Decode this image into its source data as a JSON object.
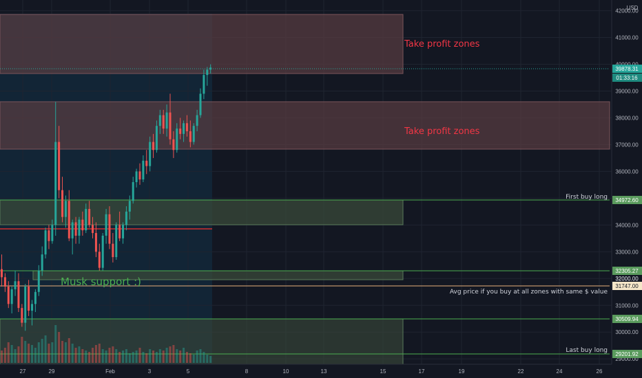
{
  "currency": "USD",
  "colors": {
    "background": "#131722",
    "grid": "#1f2430",
    "up": "#26a69a",
    "down": "#ef5350",
    "zone_red_fill": "#4a3438",
    "zone_red_line": "#6b4a4f",
    "zone_green_fill": "#2c3f33",
    "zone_green_line": "#3d9a52",
    "avg_line": "#e8b07a",
    "mid_red_line": "#d32f2f",
    "highlight": "#13283a",
    "price_tag": "#26a69a",
    "tag_green": "#5a9b5d",
    "annotation_red": "#f23645",
    "annotation_green": "#4caf50",
    "axis_text": "#b2b5be"
  },
  "price_axis": {
    "ticks": [
      "42000.00",
      "41000.00",
      "40000.00",
      "39000.00",
      "38000.00",
      "37000.00",
      "36000.00",
      "35000.00",
      "34000.00",
      "33000.00",
      "32000.00",
      "31000.00",
      "30000.00",
      "29000.00"
    ],
    "current_price": "39878.31",
    "countdown": "01:33:16"
  },
  "time_axis": {
    "ticks": [
      "27",
      "29",
      "Feb",
      "3",
      "5",
      "8",
      "10",
      "13",
      "15",
      "17",
      "19",
      "22",
      "24",
      "26"
    ]
  },
  "zones": [
    {
      "label": "Take profit zones",
      "color": "red"
    },
    {
      "label": "Take profit zones",
      "color": "red"
    },
    {
      "label": "",
      "color": "green"
    },
    {
      "label": "",
      "color": "green"
    },
    {
      "label": "",
      "color": "green"
    }
  ],
  "levels": [
    {
      "label": "First buy long",
      "value": "34972.60"
    },
    {
      "label": "",
      "value": "32305.27"
    },
    {
      "label": "Avg price if you buy at all zones with same $ value",
      "value": "31747.00"
    },
    {
      "label": "",
      "value": "30509.94"
    },
    {
      "label": "Last buy long",
      "value": "29201.92"
    }
  ],
  "extra_tag": "32000.00",
  "musk_label": "Musk support :)",
  "chart_data": {
    "type": "candlestick",
    "ylim": [
      28800,
      42400
    ],
    "x_range": [
      "2021-01-26",
      "2021-02-27"
    ],
    "candles_per_day": 8,
    "candles": [
      [
        32350,
        32900,
        31700,
        32050
      ],
      [
        32050,
        32200,
        31500,
        31700
      ],
      [
        31700,
        31900,
        30900,
        31050
      ],
      [
        31050,
        31700,
        30700,
        31600
      ],
      [
        31600,
        32300,
        31350,
        31900
      ],
      [
        31900,
        32200,
        30750,
        30900
      ],
      [
        30900,
        31050,
        30200,
        30350
      ],
      [
        30350,
        31800,
        30050,
        31700
      ],
      [
        31700,
        31950,
        30600,
        30800
      ],
      [
        30800,
        31200,
        30250,
        31050
      ],
      [
        31050,
        31600,
        30750,
        31500
      ],
      [
        31500,
        32500,
        31350,
        32300
      ],
      [
        32300,
        33200,
        32100,
        32900
      ],
      [
        32900,
        33900,
        32750,
        33800
      ],
      [
        33800,
        34000,
        33100,
        33400
      ],
      [
        33400,
        34200,
        33300,
        34000
      ],
      [
        34000,
        38600,
        33600,
        37100
      ],
      [
        37100,
        37700,
        35000,
        35300
      ],
      [
        35300,
        35800,
        34100,
        34300
      ],
      [
        34300,
        35100,
        33900,
        34900
      ],
      [
        34900,
        35300,
        33400,
        33500
      ],
      [
        33500,
        34200,
        32900,
        34100
      ],
      [
        34100,
        34300,
        33300,
        33600
      ],
      [
        33600,
        34300,
        33300,
        34200
      ],
      [
        34200,
        34500,
        33600,
        33800
      ],
      [
        33800,
        34800,
        33700,
        34600
      ],
      [
        34600,
        34900,
        33900,
        34000
      ],
      [
        34000,
        34300,
        33500,
        33700
      ],
      [
        33700,
        34100,
        32800,
        33000
      ],
      [
        33000,
        33300,
        32300,
        32400
      ],
      [
        32400,
        33700,
        32300,
        33600
      ],
      [
        33600,
        34600,
        33300,
        34400
      ],
      [
        34400,
        34700,
        33100,
        33300
      ],
      [
        33300,
        33700,
        32600,
        32800
      ],
      [
        32800,
        34100,
        32700,
        34000
      ],
      [
        34000,
        34500,
        33400,
        33500
      ],
      [
        33500,
        34100,
        33300,
        34000
      ],
      [
        34000,
        34700,
        33800,
        34500
      ],
      [
        34500,
        35100,
        34200,
        34900
      ],
      [
        34900,
        35800,
        34800,
        35600
      ],
      [
        35600,
        36100,
        35400,
        36000
      ],
      [
        36000,
        36300,
        35500,
        35700
      ],
      [
        35700,
        36600,
        35600,
        36400
      ],
      [
        36400,
        36800,
        35900,
        36200
      ],
      [
        36200,
        37300,
        36000,
        37100
      ],
      [
        37100,
        37400,
        36500,
        36800
      ],
      [
        36800,
        37900,
        36700,
        37700
      ],
      [
        37700,
        38300,
        37400,
        38100
      ],
      [
        38100,
        38300,
        37400,
        37600
      ],
      [
        37600,
        38500,
        37300,
        38200
      ],
      [
        38200,
        38900,
        37000,
        37200
      ],
      [
        37200,
        37500,
        36500,
        36800
      ],
      [
        36800,
        37800,
        36700,
        37600
      ],
      [
        37600,
        38000,
        37200,
        37400
      ],
      [
        37400,
        37900,
        37100,
        37800
      ],
      [
        37800,
        38100,
        37300,
        37500
      ],
      [
        37500,
        37900,
        36900,
        37100
      ],
      [
        37100,
        37800,
        37000,
        37700
      ],
      [
        37700,
        38300,
        37500,
        38100
      ],
      [
        38100,
        39100,
        38000,
        38900
      ],
      [
        38900,
        39800,
        38700,
        39600
      ],
      [
        39600,
        39900,
        39200,
        39800
      ],
      [
        39800,
        40000,
        39650,
        39878
      ]
    ],
    "volumes": [
      18,
      22,
      30,
      26,
      20,
      24,
      38,
      32,
      28,
      26,
      22,
      30,
      35,
      40,
      28,
      30,
      55,
      45,
      32,
      30,
      36,
      28,
      22,
      24,
      20,
      18,
      16,
      22,
      26,
      28,
      20,
      18,
      22,
      24,
      20,
      16,
      18,
      20,
      14,
      16,
      18,
      22,
      16,
      14,
      20,
      18,
      16,
      20,
      18,
      22,
      24,
      26,
      20,
      18,
      22,
      16,
      14,
      12,
      18,
      20,
      16,
      12,
      10
    ],
    "volume_scale_max": 60
  }
}
